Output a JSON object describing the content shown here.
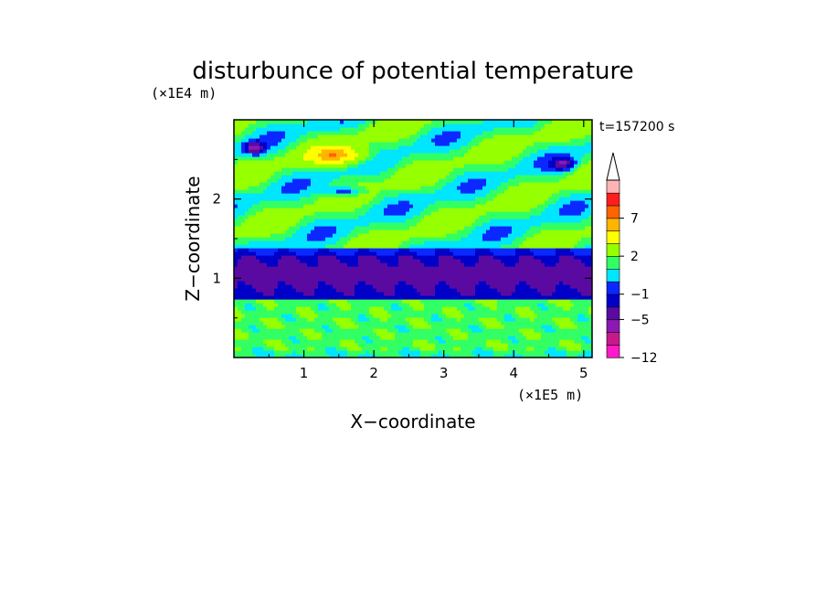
{
  "chart_data": {
    "type": "heatmap",
    "title": "disturbunce of potential temperature",
    "xlabel": "X−coordinate",
    "ylabel": "Z−coordinate",
    "x_unit": "(×1E5 m)",
    "y_unit": "(×1E4 m)",
    "time_label": "t=157200 s",
    "xlim": [
      0,
      5.12
    ],
    "ylim": [
      0,
      3.0
    ],
    "x_ticks": [
      1,
      2,
      3,
      4,
      5
    ],
    "y_ticks": [
      1,
      2
    ],
    "colorbar": {
      "levels": [
        -12,
        -10,
        -8,
        -5,
        -3,
        -1,
        0,
        1,
        2,
        4,
        6,
        7,
        9,
        11
      ],
      "tick_labels": [
        "−12",
        "−5",
        "−1",
        "2",
        "7"
      ],
      "tick_values": [
        -12,
        -5,
        -1,
        2,
        7
      ],
      "colors": [
        "#ff19c8",
        "#c8198c",
        "#8c19b4",
        "#5a0aa0",
        "#0000c8",
        "#0a28ff",
        "#00e6ff",
        "#32ff64",
        "#96ff00",
        "#ffff00",
        "#ffb400",
        "#ff6400",
        "#ff1e1e",
        "#ffb4b4"
      ],
      "extend_top": true
    },
    "fields": [
      {
        "name": "lower-band",
        "z_range": [
          0,
          0.75
        ],
        "dominant": 2
      },
      {
        "name": "mid-cold-band",
        "z_range": [
          0.75,
          1.4
        ],
        "dominant": -3
      },
      {
        "name": "upper-band",
        "z_range": [
          1.4,
          3.0
        ],
        "dominant": 2
      },
      {
        "name": "warm-anomaly",
        "x": 1.5,
        "z": 2.55,
        "value": 6
      },
      {
        "name": "cold-anomaly",
        "x": 0.3,
        "z": 2.65,
        "value": -5
      },
      {
        "name": "cold-anomaly",
        "x": 4.7,
        "z": 2.45,
        "value": -5
      }
    ]
  }
}
